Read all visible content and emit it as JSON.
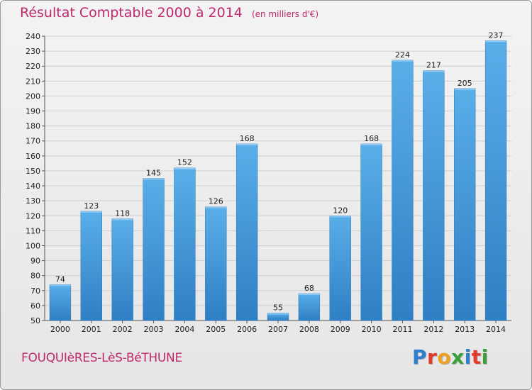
{
  "header": {
    "title": "Résultat Comptable 2000 à 2014",
    "unit": "(en milliers d'€)"
  },
  "footer": {
    "commune": "FOUQUIèRES-LèS-BéTHUNE",
    "logo": {
      "letters": [
        "P",
        "r",
        "o",
        "x",
        "i",
        "t",
        "i"
      ],
      "colors": [
        "#2f7fd0",
        "#e23b2e",
        "#f0a020",
        "#3aa13a",
        "#2f7fd0",
        "#e23b2e",
        "#3aa13a"
      ]
    }
  },
  "chart_data": {
    "type": "bar",
    "categories": [
      "2000",
      "2001",
      "2002",
      "2003",
      "2004",
      "2005",
      "2006",
      "2007",
      "2008",
      "2009",
      "2010",
      "2011",
      "2012",
      "2013",
      "2014"
    ],
    "values": [
      74,
      123,
      118,
      145,
      152,
      126,
      168,
      55,
      68,
      120,
      168,
      224,
      217,
      205,
      237
    ],
    "ylim": [
      50,
      240
    ],
    "ytick_step": 10,
    "grid": true,
    "bar_color": "#3d95d8",
    "grid_color": "#cfcfcf",
    "title": "Résultat Comptable 2000 à 2014",
    "xlabel": "",
    "ylabel": ""
  }
}
